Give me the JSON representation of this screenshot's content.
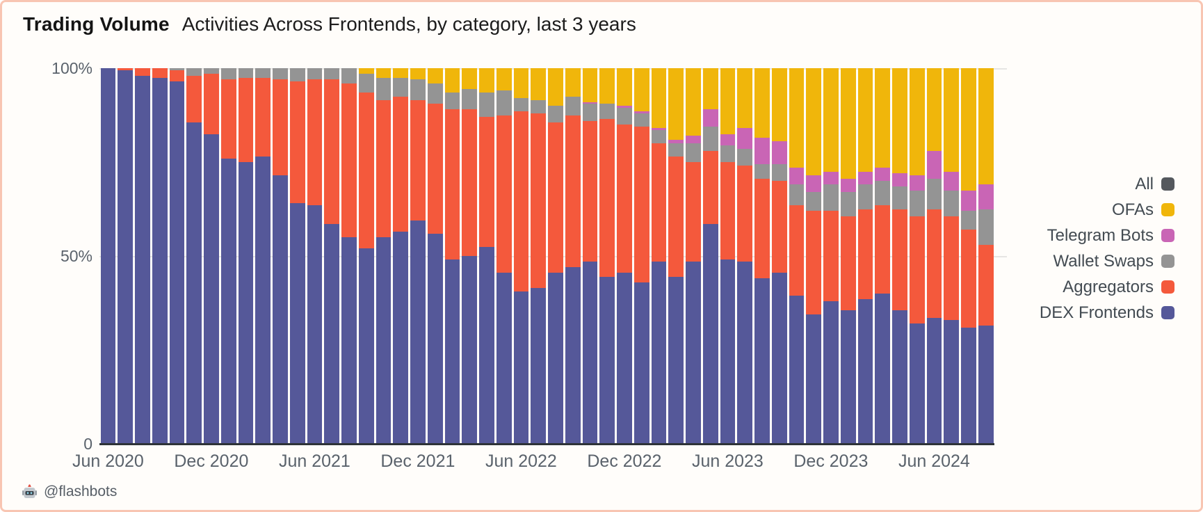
{
  "page": {
    "border_color": "#f8c5b2",
    "background_color": "#fffdfa"
  },
  "header": {
    "title": "Trading Volume",
    "subtitle": "Activities Across Frontends, by category, last 3 years"
  },
  "watermark": {
    "icon": "flashbots-robot",
    "text": "@flashbots"
  },
  "legend": {
    "position": "right",
    "items": [
      {
        "label": "All",
        "color": "#54585d"
      },
      {
        "label": "OFAs",
        "color": "#f0b60b"
      },
      {
        "label": "Telegram Bots",
        "color": "#c965b5"
      },
      {
        "label": "Wallet Swaps",
        "color": "#949494"
      },
      {
        "label": "Aggregators",
        "color": "#f4593c"
      },
      {
        "label": "DEX Frontends",
        "color": "#555899"
      }
    ]
  },
  "chart_data": {
    "type": "bar",
    "stacked": true,
    "unit": "percent share of monthly trading volume",
    "title": "Trading Volume — Activities Across Frontends, by category, last 3 years",
    "xlabel": "",
    "ylabel": "",
    "ylim": [
      0,
      100
    ],
    "grid": "horizontal, at 50% and 100%",
    "legend_position": "right",
    "y_ticks": [
      {
        "value": 100,
        "label": "100%"
      },
      {
        "value": 50,
        "label": "50%"
      },
      {
        "value": 0,
        "label": "0"
      }
    ],
    "x_ticks": [
      {
        "index": 0,
        "label": "Jun 2020"
      },
      {
        "index": 6,
        "label": "Dec 2020"
      },
      {
        "index": 12,
        "label": "Jun 2021"
      },
      {
        "index": 18,
        "label": "Dec 2021"
      },
      {
        "index": 24,
        "label": "Jun 2022"
      },
      {
        "index": 30,
        "label": "Dec 2022"
      },
      {
        "index": 36,
        "label": "Jun 2023"
      },
      {
        "index": 42,
        "label": "Dec 2023"
      },
      {
        "index": 48,
        "label": "Jun 2024"
      }
    ],
    "categories": [
      "Jun 2020",
      "Jul 2020",
      "Aug 2020",
      "Sep 2020",
      "Oct 2020",
      "Nov 2020",
      "Dec 2020",
      "Jan 2021",
      "Feb 2021",
      "Mar 2021",
      "Apr 2021",
      "May 2021",
      "Jun 2021",
      "Jul 2021",
      "Aug 2021",
      "Sep 2021",
      "Oct 2021",
      "Nov 2021",
      "Dec 2021",
      "Jan 2022",
      "Feb 2022",
      "Mar 2022",
      "Apr 2022",
      "May 2022",
      "Jun 2022",
      "Jul 2022",
      "Aug 2022",
      "Sep 2022",
      "Oct 2022",
      "Nov 2022",
      "Dec 2022",
      "Jan 2023",
      "Feb 2023",
      "Mar 2023",
      "Apr 2023",
      "May 2023",
      "Jun 2023",
      "Jul 2023",
      "Aug 2023",
      "Sep 2023",
      "Oct 2023",
      "Nov 2023",
      "Dec 2023",
      "Jan 2024",
      "Feb 2024",
      "Mar 2024",
      "Apr 2024",
      "May 2024",
      "Jun 2024",
      "Jul 2024",
      "Aug 2024",
      "Sep 2024"
    ],
    "series": [
      {
        "name": "DEX Frontends",
        "color": "#555899",
        "values": [
          100,
          99.5,
          98,
          97.5,
          96.5,
          85.5,
          82.5,
          76,
          75,
          76.5,
          71.5,
          64,
          63.5,
          58.5,
          55,
          52,
          55,
          56.5,
          59.5,
          56,
          49,
          50,
          52.5,
          45.5,
          40.5,
          41.5,
          45.5,
          47,
          48.5,
          44.5,
          45.5,
          43,
          48.5,
          44.5,
          48.5,
          58.5,
          49,
          48.5,
          44,
          45.5,
          39.5,
          34.5,
          38,
          35.5,
          38.5,
          40,
          35.5,
          32,
          33.5,
          33,
          31,
          31.5
        ]
      },
      {
        "name": "Aggregators",
        "color": "#f4593c",
        "values": [
          0,
          0.5,
          2,
          2.5,
          3,
          12.5,
          16,
          21,
          22.5,
          21,
          25.5,
          32.5,
          33.5,
          38.5,
          41,
          41.5,
          36.5,
          36,
          32,
          34.5,
          40,
          39,
          34.5,
          42,
          48,
          46.5,
          40,
          40.5,
          37.5,
          42,
          39.5,
          41.5,
          31.5,
          32,
          26.5,
          19.5,
          26,
          25.5,
          26.5,
          24.5,
          24,
          27.5,
          24,
          25,
          24,
          23.5,
          27,
          28.5,
          29,
          27.5,
          26,
          21.5
        ]
      },
      {
        "name": "Wallet Swaps",
        "color": "#949494",
        "values": [
          0,
          0,
          0,
          0,
          0.5,
          2,
          1.5,
          3,
          2.5,
          2.5,
          3,
          3.5,
          3,
          3,
          4,
          5,
          6,
          5,
          5.5,
          5.5,
          4.5,
          5.5,
          6.5,
          6.5,
          3.5,
          3.5,
          4.5,
          5,
          4.5,
          4,
          4.5,
          3.5,
          3.5,
          3.5,
          5,
          6.5,
          4.5,
          4.5,
          4,
          4.5,
          5.5,
          5,
          7,
          6.5,
          6.5,
          6.5,
          6,
          7,
          8,
          7,
          5,
          9.5
        ]
      },
      {
        "name": "Telegram Bots",
        "color": "#c965b5",
        "values": [
          0,
          0,
          0,
          0,
          0,
          0,
          0,
          0,
          0,
          0,
          0,
          0,
          0,
          0,
          0,
          0,
          0,
          0,
          0,
          0,
          0,
          0,
          0,
          0,
          0,
          0,
          0,
          0,
          0.5,
          0,
          0.5,
          0.5,
          0.5,
          1,
          2,
          4.5,
          3,
          5.5,
          7,
          6,
          4.5,
          4.5,
          3.5,
          3.5,
          3.5,
          3.5,
          3.5,
          4,
          7.5,
          5,
          5.5,
          6.5
        ]
      },
      {
        "name": "OFAs",
        "color": "#f0b60b",
        "values": [
          0,
          0,
          0,
          0,
          0,
          0,
          0,
          0,
          0,
          0,
          0,
          0,
          0,
          0,
          0,
          1.5,
          2.5,
          2.5,
          3,
          4,
          6.5,
          5.5,
          6.5,
          6,
          8,
          8.5,
          10,
          7.5,
          9,
          9.5,
          10,
          11.5,
          16,
          19,
          18,
          11,
          17.5,
          16,
          18.5,
          19.5,
          26.5,
          28.5,
          27.5,
          29.5,
          27.5,
          26.5,
          28,
          28.5,
          22,
          27.5,
          32.5,
          31
        ]
      }
    ]
  }
}
